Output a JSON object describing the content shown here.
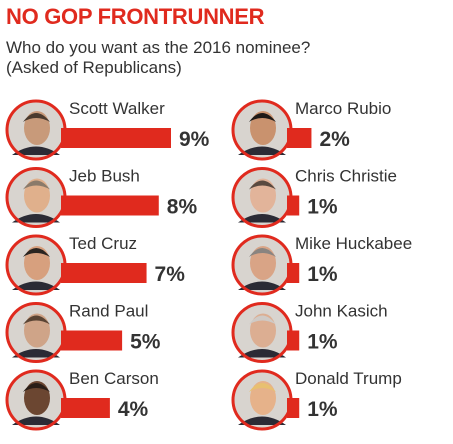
{
  "header": {
    "title": "NO GOP FRONTRUNNER",
    "subtitle_line1": "Who do you want as the 2016 nominee?",
    "subtitle_line2": "(Asked of Republicans)"
  },
  "colors": {
    "bar": "#e02a1e",
    "portrait_ring": "#e02a1e",
    "text": "#333333"
  },
  "chart_data": {
    "type": "bar",
    "title": "NO GOP FRONTRUNNER",
    "subtitle": "Who do you want as the 2016 nominee? (Asked of Republicans)",
    "unit": "%",
    "categories": [
      "Scott Walker",
      "Jeb Bush",
      "Ted Cruz",
      "Rand Paul",
      "Ben Carson",
      "Marco Rubio",
      "Chris Christie",
      "Mike Huckabee",
      "John Kasich",
      "Donald Trump"
    ],
    "values": [
      9,
      8,
      7,
      5,
      4,
      2,
      1,
      1,
      1,
      1
    ],
    "labels": [
      "9%",
      "8%",
      "7%",
      "5%",
      "4%",
      "2%",
      "1%",
      "1%",
      "1%",
      "1%"
    ],
    "icons": [
      "portrait-scott-walker",
      "portrait-jeb-bush",
      "portrait-ted-cruz",
      "portrait-rand-paul",
      "portrait-ben-carson",
      "portrait-marco-rubio",
      "portrait-chris-christie",
      "portrait-mike-huckabee",
      "portrait-john-kasich",
      "portrait-donald-trump"
    ],
    "layout": "two columns of five",
    "grid": false
  }
}
